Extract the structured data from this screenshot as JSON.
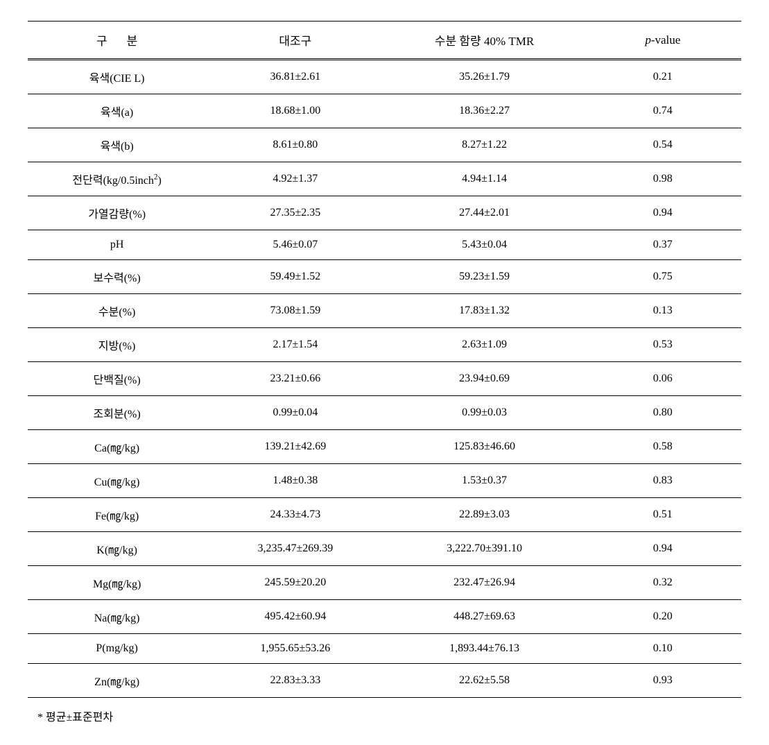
{
  "table": {
    "columns": {
      "category_prefix": "구",
      "category_suffix": "분",
      "control": "대조구",
      "tmr": "수분 함량 40% TMR",
      "pvalue_prefix": "p",
      "pvalue_suffix": "-value"
    },
    "rows": [
      {
        "category": "육색(CIE L)",
        "control": "36.81±2.61",
        "tmr": "35.26±1.79",
        "pvalue": "0.21"
      },
      {
        "category": "육색(a)",
        "control": "18.68±1.00",
        "tmr": "18.36±2.27",
        "pvalue": "0.74"
      },
      {
        "category": "육색(b)",
        "control": "8.61±0.80",
        "tmr": "8.27±1.22",
        "pvalue": "0.54"
      },
      {
        "category": "전단력(kg/0.5inch²)",
        "control": "4.92±1.37",
        "tmr": "4.94±1.14",
        "pvalue": "0.98"
      },
      {
        "category": "가열감량(%)",
        "control": "27.35±2.35",
        "tmr": "27.44±2.01",
        "pvalue": "0.94"
      },
      {
        "category": "pH",
        "control": "5.46±0.07",
        "tmr": "5.43±0.04",
        "pvalue": "0.37"
      },
      {
        "category": "보수력(%)",
        "control": "59.49±1.52",
        "tmr": "59.23±1.59",
        "pvalue": "0.75"
      },
      {
        "category": "수분(%)",
        "control": "73.08±1.59",
        "tmr": "17.83±1.32",
        "pvalue": "0.13"
      },
      {
        "category": "지방(%)",
        "control": "2.17±1.54",
        "tmr": "2.63±1.09",
        "pvalue": "0.53"
      },
      {
        "category": "단백질(%)",
        "control": "23.21±0.66",
        "tmr": "23.94±0.69",
        "pvalue": "0.06"
      },
      {
        "category": "조회분(%)",
        "control": "0.99±0.04",
        "tmr": "0.99±0.03",
        "pvalue": "0.80"
      },
      {
        "category": "Ca(㎎/kg)",
        "control": "139.21±42.69",
        "tmr": "125.83±46.60",
        "pvalue": "0.58"
      },
      {
        "category": "Cu(㎎/kg)",
        "control": "1.48±0.38",
        "tmr": "1.53±0.37",
        "pvalue": "0.83"
      },
      {
        "category": "Fe(㎎/kg)",
        "control": "24.33±4.73",
        "tmr": "22.89±3.03",
        "pvalue": "0.51"
      },
      {
        "category": "K(㎎/kg)",
        "control": "3,235.47±269.39",
        "tmr": "3,222.70±391.10",
        "pvalue": "0.94"
      },
      {
        "category": "Mg(㎎/kg)",
        "control": "245.59±20.20",
        "tmr": "232.47±26.94",
        "pvalue": "0.32"
      },
      {
        "category": "Na(㎎/kg)",
        "control": "495.42±60.94",
        "tmr": "448.27±69.63",
        "pvalue": "0.20"
      },
      {
        "category": "P(mg/kg)",
        "control": "1,955.65±53.26",
        "tmr": "1,893.44±76.13",
        "pvalue": "0.10"
      },
      {
        "category": "Zn(㎎/kg)",
        "control": "22.83±3.33",
        "tmr": "22.62±5.58",
        "pvalue": "0.93"
      }
    ],
    "footnote": "* 평균±표준편차",
    "style": {
      "border_color": "#000000",
      "background_color": "#ffffff",
      "text_color": "#000000",
      "header_border_top_width": 1.5,
      "header_border_bottom": "double",
      "row_border_width": 1,
      "font_size_header": 17,
      "font_size_body": 16,
      "font_family": "Times New Roman / Malgun Gothic",
      "col_widths_pct": [
        25,
        25,
        28,
        22
      ],
      "col_alignments": [
        "center",
        "center",
        "center",
        "center"
      ]
    }
  }
}
